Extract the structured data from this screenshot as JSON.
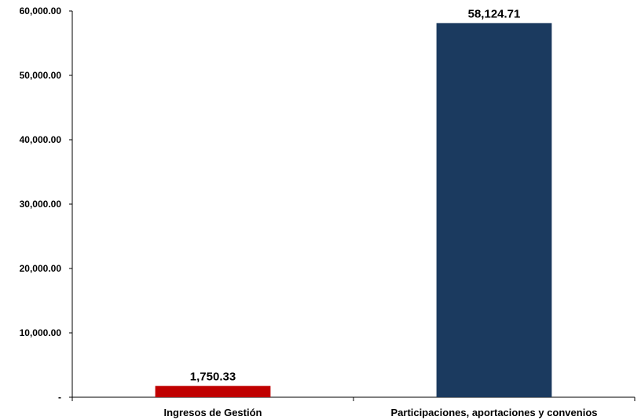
{
  "chart_data": {
    "type": "bar",
    "categories": [
      "Ingresos de Gestión",
      "Participaciones, aportaciones y convenios"
    ],
    "values": [
      1750.33,
      58124.71
    ],
    "data_labels": [
      "1,750.33",
      "58,124.71"
    ],
    "colors": [
      "#c00000",
      "#1b3a5f"
    ],
    "ylim": [
      0,
      60000
    ],
    "yticks": [
      0,
      10000,
      20000,
      30000,
      40000,
      50000,
      60000
    ],
    "ytick_labels": [
      "-",
      "10,000.00",
      "20,000.00",
      "30,000.00",
      "40,000.00",
      "50,000.00",
      "60,000.00"
    ],
    "title": "",
    "xlabel": "",
    "ylabel": "",
    "grid": false,
    "legend": "none"
  }
}
